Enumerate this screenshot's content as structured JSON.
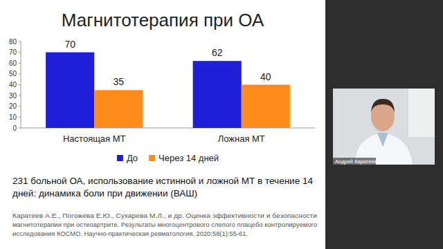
{
  "chart_data": {
    "type": "bar",
    "title": "Магнитотерапия при ОА",
    "categories": [
      "Настоящая МТ",
      "Ложная МТ"
    ],
    "series": [
      {
        "name": "До",
        "color": "#1f1fd8",
        "values": [
          70,
          62
        ]
      },
      {
        "name": "Через 14 дней",
        "color": "#ff8c1a",
        "values": [
          35,
          40
        ]
      }
    ],
    "ylim": [
      0,
      80
    ],
    "yticks": [
      0,
      10,
      20,
      30,
      40,
      50,
      60,
      70,
      80
    ],
    "grid": false,
    "legend": "bottom",
    "data_labels": true
  },
  "slide": {
    "caption": [
      "231 больной ОА, использование истинной и ложной МТ в течение 14",
      "дней: динамика боли при движении (ВАШ)"
    ],
    "reference": [
      "Каратеев А.Е., Погожева Е.Ю., Сухарева М.Л., и др. Оценка эффективности и безопасности",
      "магнитотерапии при остеоартрите. Результаты многоцентрового слепого плацебо контролируемого",
      "исследования КОСМО. Научно-практическая ревматология. 2020;58(1):55-61."
    ],
    "speaker": "Андрей Каратеев"
  }
}
